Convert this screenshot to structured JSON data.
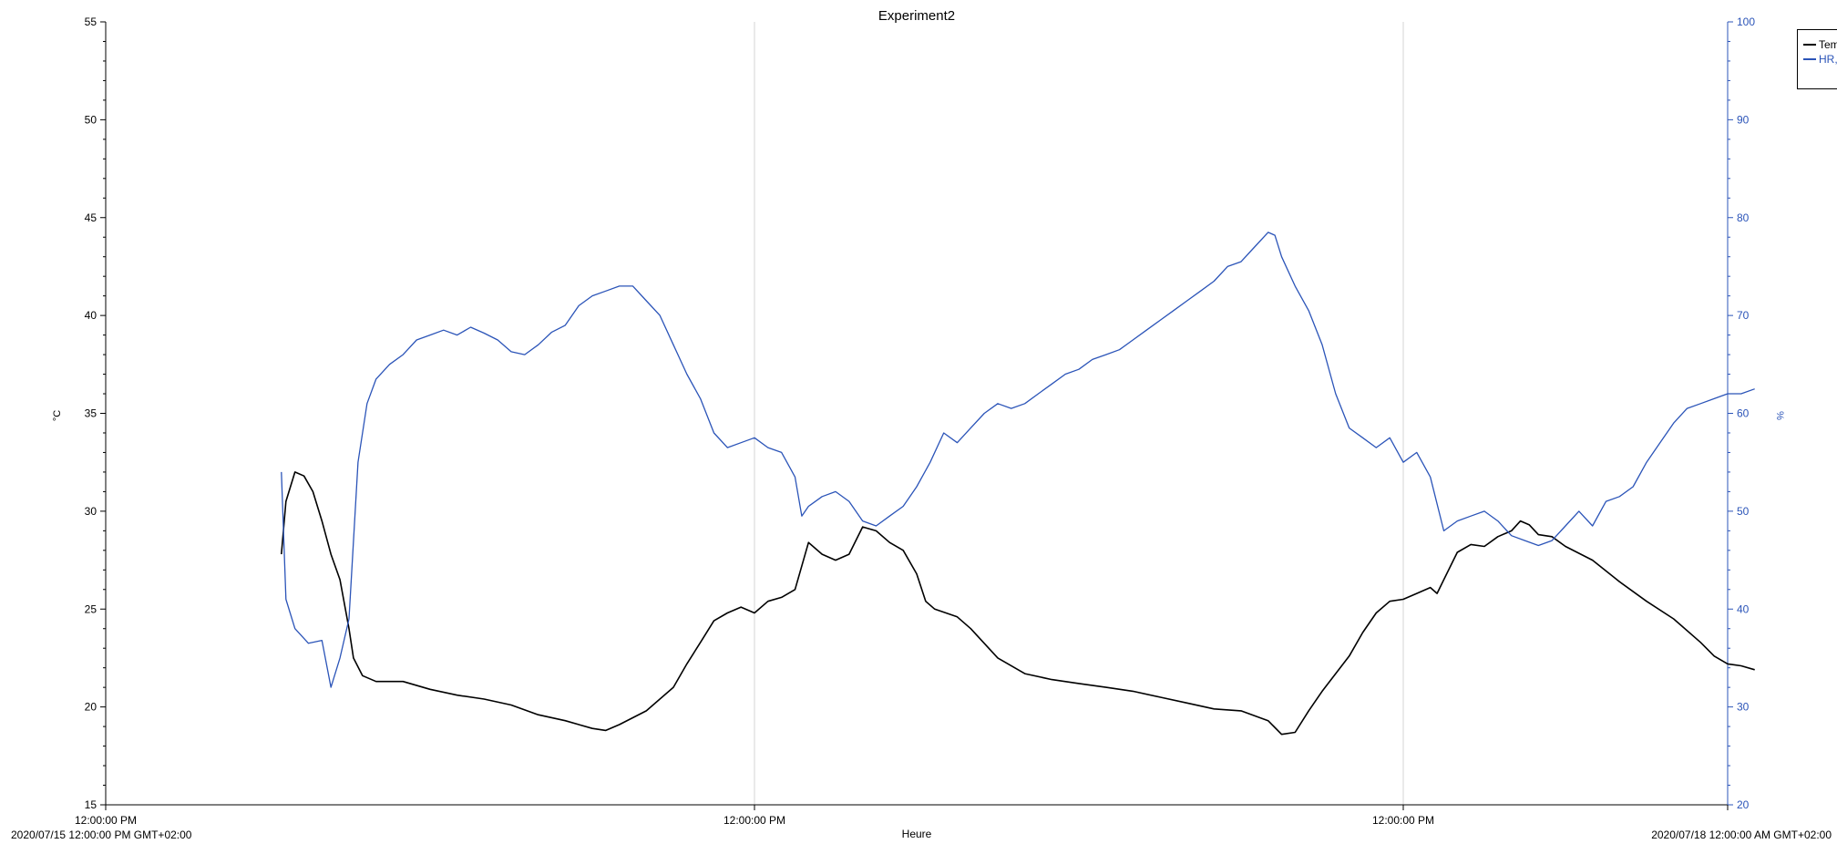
{
  "chart_data": {
    "type": "line",
    "title": "Experiment2",
    "xlabel": "Heure",
    "ylabel_left": "°C",
    "ylabel_right": "%",
    "ylim_left": [
      15,
      55
    ],
    "ylim_right": [
      20,
      100
    ],
    "yticks_left": [
      "15",
      "20",
      "25",
      "30",
      "35",
      "40",
      "45",
      "50",
      "55"
    ],
    "yticks_right": [
      "20",
      "30",
      "40",
      "50",
      "60",
      "70",
      "80",
      "90",
      "100"
    ],
    "x_range": [
      "2020/07/15 12:00:00",
      "2020/07/18 00:00:00"
    ],
    "xticks": [
      {
        "at": "2020/07/15 12:00:00",
        "label": "12:00:00 PM",
        "sublabel": "2020/07/15 12:00:00 PM GMT+02:00"
      },
      {
        "at": "2020/07/16 12:00:00",
        "label": "12:00:00 PM",
        "sublabel": ""
      },
      {
        "at": "2020/07/17 12:00:00",
        "label": "12:00:00 PM",
        "sublabel": ""
      },
      {
        "at": "2020/07/18 00:00:00",
        "label": "",
        "sublabel": "2020/07/18 12:00:00 AM GMT+02:00"
      }
    ],
    "grid": "vertical lines at 12:00:00 PM",
    "legend_position": "top-right",
    "series": [
      {
        "name": "Tem",
        "color": "#000000",
        "axis": "left",
        "points": [
          [
            "2020/07/15 18:30",
            27.8
          ],
          [
            "2020/07/15 18:40",
            30.5
          ],
          [
            "2020/07/15 19:00",
            32.0
          ],
          [
            "2020/07/15 19:20",
            31.8
          ],
          [
            "2020/07/15 19:40",
            31.0
          ],
          [
            "2020/07/15 20:00",
            29.5
          ],
          [
            "2020/07/15 20:20",
            27.8
          ],
          [
            "2020/07/15 20:40",
            26.5
          ],
          [
            "2020/07/15 21:00",
            24.0
          ],
          [
            "2020/07/15 21:10",
            22.5
          ],
          [
            "2020/07/15 21:30",
            21.6
          ],
          [
            "2020/07/15 22:00",
            21.3
          ],
          [
            "2020/07/15 23:00",
            21.3
          ],
          [
            "2020/07/16 00:00",
            20.9
          ],
          [
            "2020/07/16 01:00",
            20.6
          ],
          [
            "2020/07/16 02:00",
            20.4
          ],
          [
            "2020/07/16 03:00",
            20.1
          ],
          [
            "2020/07/16 04:00",
            19.6
          ],
          [
            "2020/07/16 05:00",
            19.3
          ],
          [
            "2020/07/16 06:00",
            18.9
          ],
          [
            "2020/07/16 06:30",
            18.8
          ],
          [
            "2020/07/16 07:00",
            19.1
          ],
          [
            "2020/07/16 08:00",
            19.8
          ],
          [
            "2020/07/16 09:00",
            21.0
          ],
          [
            "2020/07/16 09:30",
            22.2
          ],
          [
            "2020/07/16 10:00",
            23.3
          ],
          [
            "2020/07/16 10:30",
            24.4
          ],
          [
            "2020/07/16 11:00",
            24.8
          ],
          [
            "2020/07/16 11:30",
            25.1
          ],
          [
            "2020/07/16 12:00",
            24.8
          ],
          [
            "2020/07/16 12:30",
            25.4
          ],
          [
            "2020/07/16 13:00",
            25.6
          ],
          [
            "2020/07/16 13:30",
            26.0
          ],
          [
            "2020/07/16 14:00",
            28.4
          ],
          [
            "2020/07/16 14:30",
            27.8
          ],
          [
            "2020/07/16 15:00",
            27.5
          ],
          [
            "2020/07/16 15:30",
            27.8
          ],
          [
            "2020/07/16 16:00",
            29.2
          ],
          [
            "2020/07/16 16:30",
            29.0
          ],
          [
            "2020/07/16 17:00",
            28.4
          ],
          [
            "2020/07/16 17:30",
            28.0
          ],
          [
            "2020/07/16 18:00",
            26.8
          ],
          [
            "2020/07/16 18:20",
            25.4
          ],
          [
            "2020/07/16 18:40",
            25.0
          ],
          [
            "2020/07/16 19:30",
            24.6
          ],
          [
            "2020/07/16 20:00",
            24.0
          ],
          [
            "2020/07/16 21:00",
            22.5
          ],
          [
            "2020/07/16 22:00",
            21.7
          ],
          [
            "2020/07/16 23:00",
            21.4
          ],
          [
            "2020/07/17 00:00",
            21.2
          ],
          [
            "2020/07/17 01:00",
            21.0
          ],
          [
            "2020/07/17 02:00",
            20.8
          ],
          [
            "2020/07/17 03:00",
            20.5
          ],
          [
            "2020/07/17 04:00",
            20.2
          ],
          [
            "2020/07/17 05:00",
            19.9
          ],
          [
            "2020/07/17 06:00",
            19.8
          ],
          [
            "2020/07/17 07:00",
            19.3
          ],
          [
            "2020/07/17 07:30",
            18.6
          ],
          [
            "2020/07/17 08:00",
            18.7
          ],
          [
            "2020/07/17 08:30",
            19.8
          ],
          [
            "2020/07/17 09:00",
            20.8
          ],
          [
            "2020/07/17 10:00",
            22.6
          ],
          [
            "2020/07/17 10:30",
            23.8
          ],
          [
            "2020/07/17 11:00",
            24.8
          ],
          [
            "2020/07/17 11:30",
            25.4
          ],
          [
            "2020/07/17 12:00",
            25.5
          ],
          [
            "2020/07/17 12:30",
            25.8
          ],
          [
            "2020/07/17 13:00",
            26.1
          ],
          [
            "2020/07/17 13:15",
            25.8
          ],
          [
            "2020/07/17 13:30",
            26.5
          ],
          [
            "2020/07/17 14:00",
            27.9
          ],
          [
            "2020/07/17 14:30",
            28.3
          ],
          [
            "2020/07/17 15:00",
            28.2
          ],
          [
            "2020/07/17 15:30",
            28.7
          ],
          [
            "2020/07/17 16:00",
            29.0
          ],
          [
            "2020/07/17 16:20",
            29.5
          ],
          [
            "2020/07/17 16:40",
            29.3
          ],
          [
            "2020/07/17 17:00",
            28.8
          ],
          [
            "2020/07/17 17:30",
            28.7
          ],
          [
            "2020/07/17 18:00",
            28.2
          ],
          [
            "2020/07/17 19:00",
            27.5
          ],
          [
            "2020/07/17 20:00",
            26.4
          ],
          [
            "2020/07/17 21:00",
            25.4
          ],
          [
            "2020/07/17 22:00",
            24.5
          ],
          [
            "2020/07/17 23:00",
            23.3
          ],
          [
            "2020/07/17 23:30",
            22.6
          ],
          [
            "2020/07/18 00:00",
            22.2
          ],
          [
            "2020/07/18 00:30",
            22.1
          ],
          [
            "2020/07/18 01:00",
            21.9
          ]
        ]
      },
      {
        "name": "HR,",
        "color": "#2b54b8",
        "axis": "right",
        "points": [
          [
            "2020/07/15 18:30",
            54.0
          ],
          [
            "2020/07/15 18:40",
            41.0
          ],
          [
            "2020/07/15 19:00",
            38.0
          ],
          [
            "2020/07/15 19:30",
            36.5
          ],
          [
            "2020/07/15 20:00",
            36.8
          ],
          [
            "2020/07/15 20:20",
            32.0
          ],
          [
            "2020/07/15 20:40",
            35.0
          ],
          [
            "2020/07/15 21:00",
            39.0
          ],
          [
            "2020/07/15 21:20",
            55.0
          ],
          [
            "2020/07/15 21:40",
            61.0
          ],
          [
            "2020/07/15 22:00",
            63.5
          ],
          [
            "2020/07/15 22:30",
            65.0
          ],
          [
            "2020/07/15 23:00",
            66.0
          ],
          [
            "2020/07/15 23:30",
            67.5
          ],
          [
            "2020/07/16 00:00",
            68.0
          ],
          [
            "2020/07/16 00:30",
            68.5
          ],
          [
            "2020/07/16 01:00",
            68.0
          ],
          [
            "2020/07/16 01:30",
            68.8
          ],
          [
            "2020/07/16 02:00",
            68.2
          ],
          [
            "2020/07/16 02:30",
            67.5
          ],
          [
            "2020/07/16 03:00",
            66.3
          ],
          [
            "2020/07/16 03:30",
            66.0
          ],
          [
            "2020/07/16 04:00",
            67.0
          ],
          [
            "2020/07/16 04:30",
            68.3
          ],
          [
            "2020/07/16 05:00",
            69.0
          ],
          [
            "2020/07/16 05:30",
            71.0
          ],
          [
            "2020/07/16 06:00",
            72.0
          ],
          [
            "2020/07/16 06:30",
            72.5
          ],
          [
            "2020/07/16 07:00",
            73.0
          ],
          [
            "2020/07/16 07:30",
            73.0
          ],
          [
            "2020/07/16 08:00",
            71.5
          ],
          [
            "2020/07/16 08:30",
            70.0
          ],
          [
            "2020/07/16 09:00",
            67.0
          ],
          [
            "2020/07/16 09:30",
            64.0
          ],
          [
            "2020/07/16 10:00",
            61.5
          ],
          [
            "2020/07/16 10:30",
            58.0
          ],
          [
            "2020/07/16 11:00",
            56.5
          ],
          [
            "2020/07/16 11:30",
            57.0
          ],
          [
            "2020/07/16 12:00",
            57.5
          ],
          [
            "2020/07/16 12:30",
            56.5
          ],
          [
            "2020/07/16 13:00",
            56.0
          ],
          [
            "2020/07/16 13:30",
            53.5
          ],
          [
            "2020/07/16 13:45",
            49.5
          ],
          [
            "2020/07/16 14:00",
            50.5
          ],
          [
            "2020/07/16 14:30",
            51.5
          ],
          [
            "2020/07/16 15:00",
            52.0
          ],
          [
            "2020/07/16 15:30",
            51.0
          ],
          [
            "2020/07/16 16:00",
            49.0
          ],
          [
            "2020/07/16 16:30",
            48.5
          ],
          [
            "2020/07/16 17:00",
            49.5
          ],
          [
            "2020/07/16 17:30",
            50.5
          ],
          [
            "2020/07/16 18:00",
            52.5
          ],
          [
            "2020/07/16 18:30",
            55.0
          ],
          [
            "2020/07/16 19:00",
            58.0
          ],
          [
            "2020/07/16 19:30",
            57.0
          ],
          [
            "2020/07/16 20:00",
            58.5
          ],
          [
            "2020/07/16 20:30",
            60.0
          ],
          [
            "2020/07/16 21:00",
            61.0
          ],
          [
            "2020/07/16 21:30",
            60.5
          ],
          [
            "2020/07/16 22:00",
            61.0
          ],
          [
            "2020/07/16 22:30",
            62.0
          ],
          [
            "2020/07/16 23:00",
            63.0
          ],
          [
            "2020/07/16 23:30",
            64.0
          ],
          [
            "2020/07/17 00:00",
            64.5
          ],
          [
            "2020/07/17 00:30",
            65.5
          ],
          [
            "2020/07/17 01:00",
            66.0
          ],
          [
            "2020/07/17 01:30",
            66.5
          ],
          [
            "2020/07/17 02:00",
            67.5
          ],
          [
            "2020/07/17 02:30",
            68.5
          ],
          [
            "2020/07/17 03:00",
            69.5
          ],
          [
            "2020/07/17 03:30",
            70.5
          ],
          [
            "2020/07/17 04:00",
            71.5
          ],
          [
            "2020/07/17 04:30",
            72.5
          ],
          [
            "2020/07/17 05:00",
            73.5
          ],
          [
            "2020/07/17 05:30",
            75.0
          ],
          [
            "2020/07/17 06:00",
            75.5
          ],
          [
            "2020/07/17 06:30",
            77.0
          ],
          [
            "2020/07/17 07:00",
            78.5
          ],
          [
            "2020/07/17 07:15",
            78.2
          ],
          [
            "2020/07/17 07:30",
            76.0
          ],
          [
            "2020/07/17 08:00",
            73.0
          ],
          [
            "2020/07/17 08:30",
            70.5
          ],
          [
            "2020/07/17 09:00",
            67.0
          ],
          [
            "2020/07/17 09:30",
            62.0
          ],
          [
            "2020/07/17 10:00",
            58.5
          ],
          [
            "2020/07/17 10:30",
            57.5
          ],
          [
            "2020/07/17 11:00",
            56.5
          ],
          [
            "2020/07/17 11:30",
            57.5
          ],
          [
            "2020/07/17 12:00",
            55.0
          ],
          [
            "2020/07/17 12:30",
            56.0
          ],
          [
            "2020/07/17 13:00",
            53.5
          ],
          [
            "2020/07/17 13:30",
            48.0
          ],
          [
            "2020/07/17 14:00",
            49.0
          ],
          [
            "2020/07/17 14:30",
            49.5
          ],
          [
            "2020/07/17 15:00",
            50.0
          ],
          [
            "2020/07/17 15:30",
            49.0
          ],
          [
            "2020/07/17 16:00",
            47.5
          ],
          [
            "2020/07/17 16:30",
            47.0
          ],
          [
            "2020/07/17 17:00",
            46.5
          ],
          [
            "2020/07/17 17:30",
            47.0
          ],
          [
            "2020/07/17 18:00",
            48.5
          ],
          [
            "2020/07/17 18:30",
            50.0
          ],
          [
            "2020/07/17 19:00",
            48.5
          ],
          [
            "2020/07/17 19:30",
            51.0
          ],
          [
            "2020/07/17 20:00",
            51.5
          ],
          [
            "2020/07/17 20:30",
            52.5
          ],
          [
            "2020/07/17 21:00",
            55.0
          ],
          [
            "2020/07/17 21:30",
            57.0
          ],
          [
            "2020/07/17 22:00",
            59.0
          ],
          [
            "2020/07/17 22:30",
            60.5
          ],
          [
            "2020/07/17 23:00",
            61.0
          ],
          [
            "2020/07/17 23:30",
            61.5
          ],
          [
            "2020/07/18 00:00",
            62.0
          ],
          [
            "2020/07/18 00:30",
            62.0
          ],
          [
            "2020/07/18 01:00",
            62.5
          ]
        ]
      }
    ]
  }
}
